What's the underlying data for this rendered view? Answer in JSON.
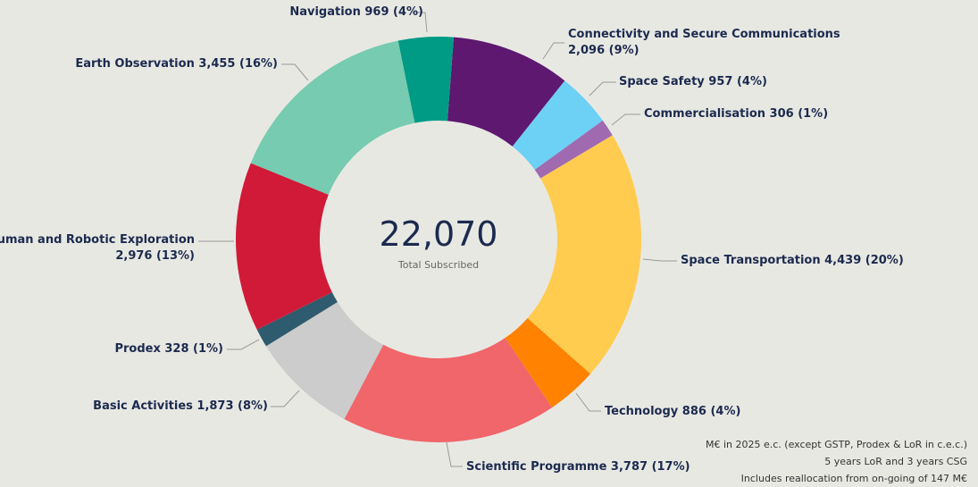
{
  "chart_data": {
    "type": "pie",
    "donut": true,
    "categories": [
      "Connectivity and Secure Communications",
      "Space Safety",
      "Commercialisation",
      "Space Transportation",
      "Technology",
      "Scientific Programme",
      "Basic Activities",
      "Prodex",
      "Human and Robotic Exploration",
      "Earth Observation",
      "Navigation"
    ],
    "values": [
      2096,
      957,
      306,
      4439,
      886,
      3787,
      1873,
      328,
      2976,
      3455,
      969
    ],
    "percent_labels": [
      "9%",
      "4%",
      "1%",
      "20%",
      "4%",
      "17%",
      "8%",
      "1%",
      "13%",
      "16%",
      "4%"
    ],
    "colors": [
      "#5E1870",
      "#6DD0F5",
      "#A06AB0",
      "#FFCC4F",
      "#FF8200",
      "#F0666A",
      "#CCCCCC",
      "#2E5B6E",
      "#D11A38",
      "#76CBB0",
      "#009B84"
    ],
    "legend": "none",
    "center": {
      "value": "22,070",
      "label": "Total Subscribed"
    }
  },
  "notes": [
    "M€ in 2025 e.c. (except GSTP, Prodex & LoR in c.e.c.)",
    "5 years LoR and 3 years CSG",
    "Includes reallocation from on-going of 147 M€"
  ]
}
